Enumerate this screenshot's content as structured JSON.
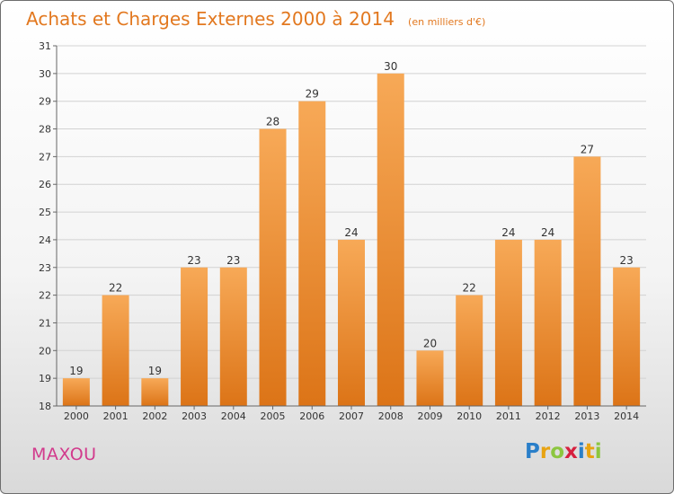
{
  "header": {
    "title": "Achats et Charges Externes 2000 à 2014",
    "unit": "(en milliers d'€)"
  },
  "footer": {
    "commune": "MAXOU",
    "logo_text": "Proxiti"
  },
  "colors": {
    "accent": "#e2781f",
    "bar_top": "#f7a957",
    "bar_bottom": "#dc7417",
    "commune": "#d23a8c"
  },
  "chart_data": {
    "type": "bar",
    "title": "Achats et Charges Externes 2000 à 2014",
    "subtitle": "(en milliers d'€)",
    "categories": [
      "2000",
      "2001",
      "2002",
      "2003",
      "2004",
      "2005",
      "2006",
      "2007",
      "2008",
      "2009",
      "2010",
      "2011",
      "2012",
      "2013",
      "2014"
    ],
    "values": [
      19,
      22,
      19,
      23,
      23,
      28,
      29,
      24,
      30,
      20,
      22,
      24,
      24,
      27,
      23
    ],
    "ylim": [
      18,
      31
    ],
    "yticks": [
      18,
      19,
      20,
      21,
      22,
      23,
      24,
      25,
      26,
      27,
      28,
      29,
      30,
      31
    ],
    "grid": true,
    "data_labels": true
  }
}
